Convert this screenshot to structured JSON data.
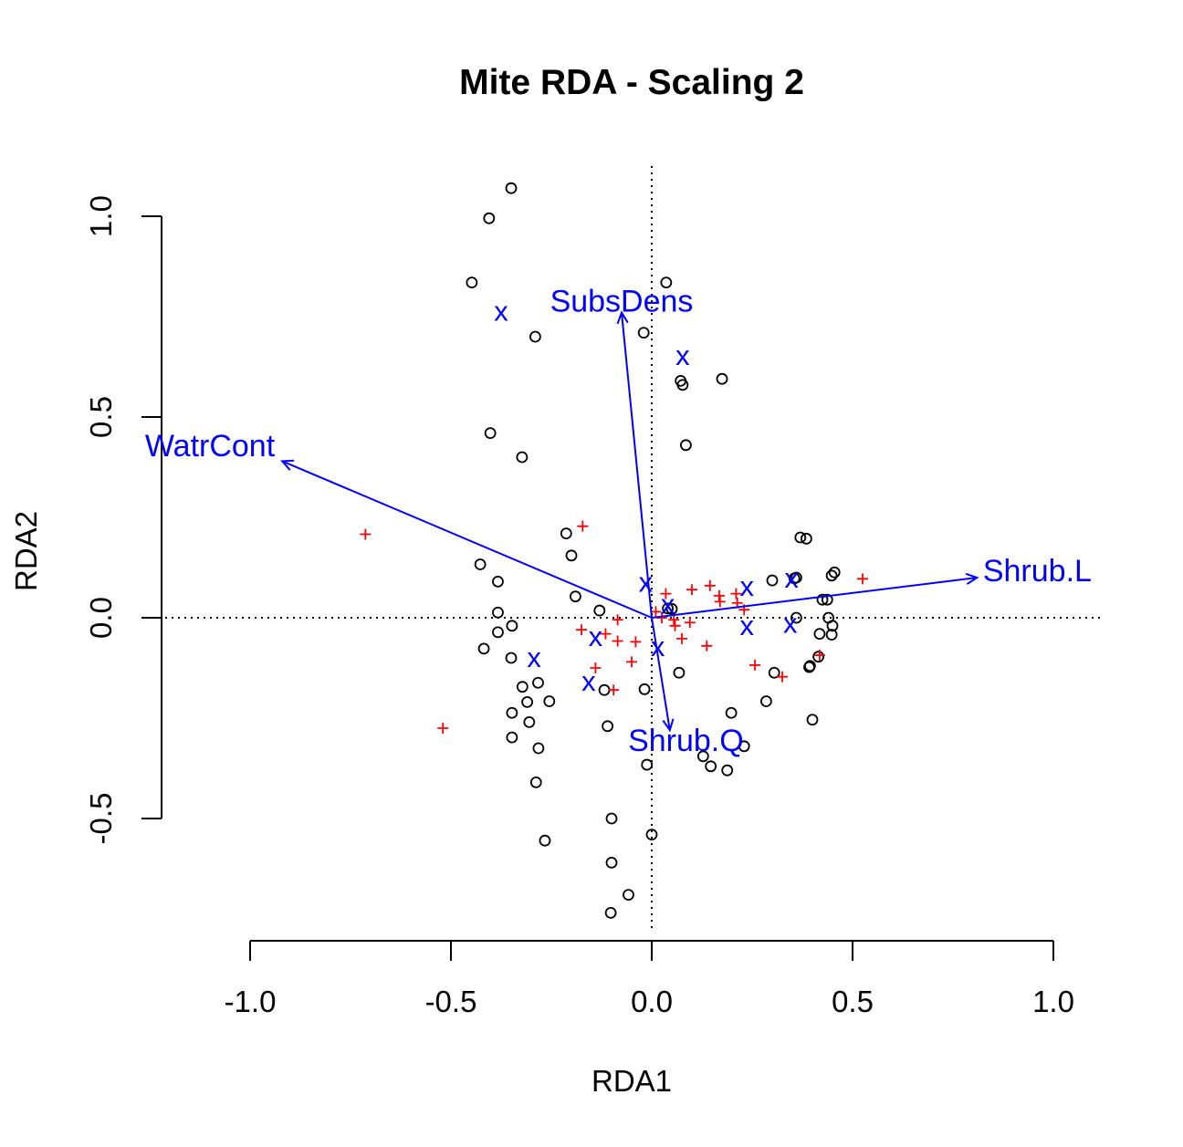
{
  "chart_data": {
    "type": "scatter",
    "title": "Mite RDA - Scaling 2",
    "xlabel": "RDA1",
    "ylabel": "RDA2",
    "xlim": [
      -1.0,
      1.0
    ],
    "ylim": [
      -0.5,
      1.0
    ],
    "x_ticks": [
      -1.0,
      -0.5,
      0.0,
      0.5,
      1.0
    ],
    "y_ticks": [
      -0.5,
      0.0,
      0.5,
      1.0
    ],
    "x_tick_labels": [
      "-1.0",
      "-0.5",
      "0.0",
      "0.5",
      "1.0"
    ],
    "y_tick_labels": [
      "-0.5",
      "0.0",
      "0.5",
      "1.0"
    ],
    "grid": false,
    "reference_lines": {
      "x": 0,
      "y": 0,
      "style": "dotted"
    },
    "colors": {
      "sites": "#000000",
      "species": "#ff0000",
      "env": "#0000ff"
    },
    "series": [
      {
        "marker": "open-circle",
        "color": "#000000",
        "points": [
          [
            -0.35,
            1.07
          ],
          [
            -0.405,
            0.995
          ],
          [
            -0.448,
            0.835
          ],
          [
            0.036,
            0.835
          ],
          [
            -0.29,
            0.7
          ],
          [
            -0.02,
            0.71
          ],
          [
            0.072,
            0.59
          ],
          [
            0.077,
            0.58
          ],
          [
            0.175,
            0.595
          ],
          [
            -0.402,
            0.46
          ],
          [
            -0.323,
            0.4
          ],
          [
            0.085,
            0.43
          ],
          [
            -0.213,
            0.21
          ],
          [
            -0.2,
            0.155
          ],
          [
            0.37,
            0.2
          ],
          [
            0.385,
            0.197
          ],
          [
            -0.427,
            0.133
          ],
          [
            -0.383,
            0.09
          ],
          [
            0.3,
            0.093
          ],
          [
            0.355,
            0.098
          ],
          [
            0.36,
            0.1
          ],
          [
            0.448,
            0.105
          ],
          [
            0.455,
            0.113
          ],
          [
            -0.19,
            0.053
          ],
          [
            0.425,
            0.045
          ],
          [
            0.437,
            0.045
          ],
          [
            -0.13,
            0.018
          ],
          [
            -0.383,
            0.013
          ],
          [
            0.04,
            0.023
          ],
          [
            0.05,
            0.022
          ],
          [
            0.36,
            0.0
          ],
          [
            0.44,
            0.0
          ],
          [
            0.45,
            -0.02
          ],
          [
            -0.348,
            -0.02
          ],
          [
            -0.383,
            -0.036
          ],
          [
            0.418,
            -0.04
          ],
          [
            0.448,
            -0.042
          ],
          [
            -0.418,
            -0.077
          ],
          [
            -0.35,
            -0.1
          ],
          [
            0.415,
            -0.097
          ],
          [
            0.394,
            -0.12
          ],
          [
            0.392,
            -0.123
          ],
          [
            0.068,
            -0.137
          ],
          [
            0.305,
            -0.137
          ],
          [
            -0.322,
            -0.172
          ],
          [
            -0.283,
            -0.162
          ],
          [
            -0.118,
            -0.18
          ],
          [
            -0.018,
            -0.178
          ],
          [
            -0.31,
            -0.21
          ],
          [
            -0.255,
            -0.208
          ],
          [
            0.285,
            -0.208
          ],
          [
            -0.348,
            -0.237
          ],
          [
            0.198,
            -0.237
          ],
          [
            -0.305,
            -0.26
          ],
          [
            -0.11,
            -0.27
          ],
          [
            0.4,
            -0.254
          ],
          [
            -0.348,
            -0.298
          ],
          [
            -0.282,
            -0.325
          ],
          [
            0.23,
            -0.32
          ],
          [
            0.128,
            -0.345
          ],
          [
            0.147,
            -0.37
          ],
          [
            -0.012,
            -0.366
          ],
          [
            0.188,
            -0.38
          ],
          [
            -0.288,
            -0.41
          ],
          [
            -0.266,
            -0.555
          ],
          [
            -0.1,
            -0.5
          ],
          [
            0.0,
            -0.54
          ],
          [
            -0.1,
            -0.61
          ],
          [
            -0.058,
            -0.69
          ],
          [
            -0.102,
            -0.735
          ]
        ]
      },
      {
        "marker": "plus",
        "color": "#ff0000",
        "points": [
          [
            -0.713,
            0.208
          ],
          [
            -0.172,
            0.228
          ],
          [
            -0.52,
            -0.275
          ],
          [
            0.525,
            0.097
          ],
          [
            -0.175,
            -0.03
          ],
          [
            -0.115,
            -0.04
          ],
          [
            -0.085,
            -0.005
          ],
          [
            -0.085,
            -0.058
          ],
          [
            -0.04,
            -0.06
          ],
          [
            -0.05,
            -0.11
          ],
          [
            -0.14,
            -0.125
          ],
          [
            -0.095,
            -0.18
          ],
          [
            0.035,
            0.06
          ],
          [
            0.1,
            0.07
          ],
          [
            0.145,
            0.08
          ],
          [
            0.168,
            0.055
          ],
          [
            0.21,
            0.06
          ],
          [
            0.17,
            0.04
          ],
          [
            0.213,
            0.037
          ],
          [
            0.23,
            0.02
          ],
          [
            0.01,
            0.015
          ],
          [
            0.025,
            0.0
          ],
          [
            0.055,
            -0.005
          ],
          [
            0.058,
            -0.02
          ],
          [
            0.095,
            -0.012
          ],
          [
            0.075,
            -0.052
          ],
          [
            0.137,
            -0.07
          ],
          [
            0.257,
            -0.118
          ],
          [
            0.325,
            -0.147
          ],
          [
            0.418,
            -0.093
          ]
        ]
      },
      {
        "marker": "x-letter",
        "color": "#0000ff",
        "points": [
          [
            -0.375,
            0.765
          ],
          [
            0.077,
            0.655
          ],
          [
            -0.015,
            0.09
          ],
          [
            0.04,
            0.035
          ],
          [
            0.237,
            0.08
          ],
          [
            0.348,
            0.1
          ],
          [
            -0.14,
            -0.045
          ],
          [
            0.237,
            -0.018
          ],
          [
            0.345,
            -0.013
          ],
          [
            -0.293,
            -0.098
          ],
          [
            0.015,
            -0.07
          ],
          [
            -0.157,
            -0.157
          ]
        ]
      }
    ],
    "biplot_arrows": [
      {
        "label": "WatrCont",
        "x": -0.92,
        "y": 0.39,
        "label_x": -1.1,
        "label_y": 0.43
      },
      {
        "label": "SubsDens",
        "x": -0.075,
        "y": 0.76,
        "label_x": -0.075,
        "label_y": 0.79
      },
      {
        "label": "Shrub.L",
        "x": 0.81,
        "y": 0.1,
        "label_x": 0.96,
        "label_y": 0.118
      },
      {
        "label": "Shrub.Q",
        "x": 0.045,
        "y": -0.28,
        "label_x": 0.085,
        "label_y": -0.305
      }
    ]
  }
}
